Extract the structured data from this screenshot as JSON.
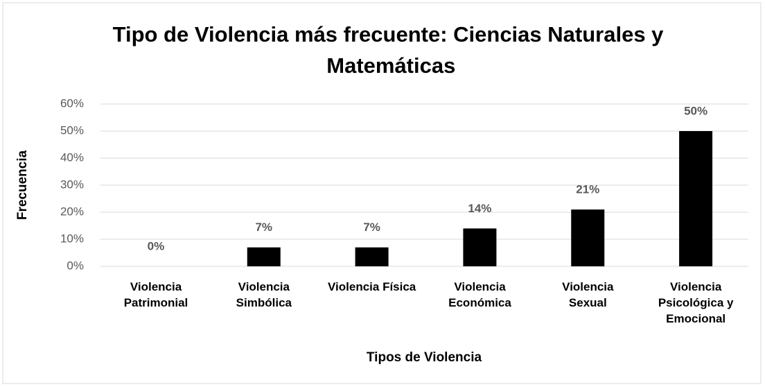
{
  "chart_data": {
    "type": "bar",
    "title": "Tipo de Violencia más frecuente: Ciencias Naturales y Matemáticas",
    "xlabel": "Tipos de Violencia",
    "ylabel": "Frecuencia",
    "categories": [
      "Violencia\nPatrimonial",
      "Violencia\nSimbólica",
      "Violencia Física",
      "Violencia\nEconómica",
      "Violencia\nSexual",
      "Violencia\nPsicológica y\nEmocional"
    ],
    "values": [
      0,
      7,
      7,
      14,
      21,
      50
    ],
    "value_labels": [
      "0%",
      "7%",
      "7%",
      "14%",
      "21%",
      "50%"
    ],
    "color": "#000000",
    "ylim": [
      0,
      60
    ],
    "yticks": [
      {
        "value": 0,
        "label": "0%"
      },
      {
        "value": 10,
        "label": "10%"
      },
      {
        "value": 20,
        "label": "20%"
      },
      {
        "value": 30,
        "label": "30%"
      },
      {
        "value": 40,
        "label": "40%"
      },
      {
        "value": 50,
        "label": "50%"
      },
      {
        "value": 60,
        "label": "60%"
      }
    ],
    "grid": true
  }
}
